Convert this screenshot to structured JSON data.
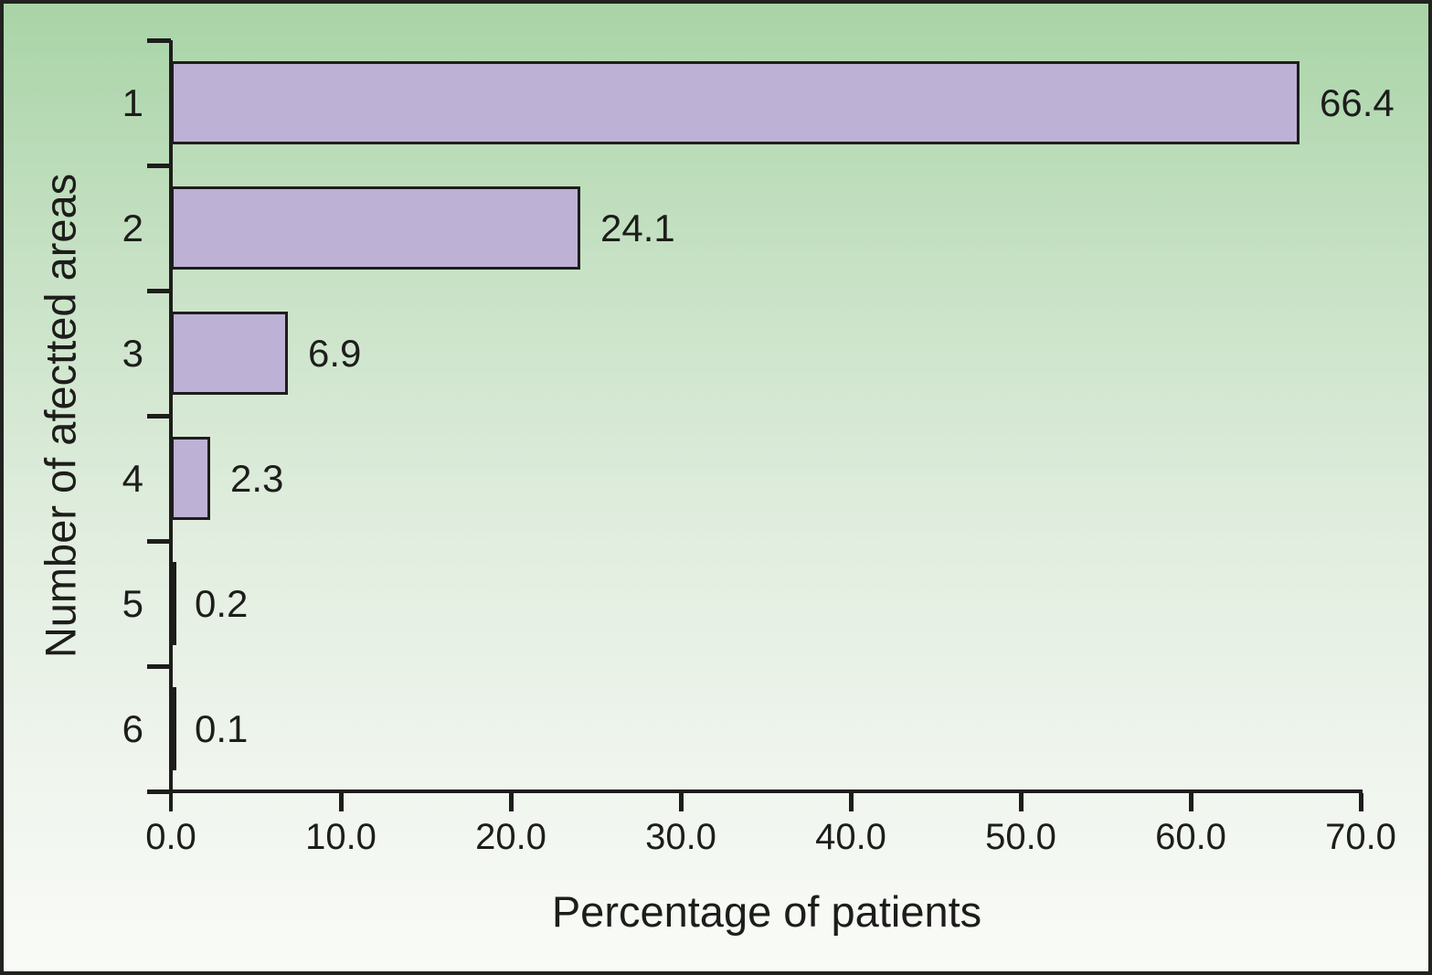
{
  "chart_data": {
    "type": "bar",
    "orientation": "horizontal",
    "categories": [
      "1",
      "2",
      "3",
      "4",
      "5",
      "6"
    ],
    "values": [
      66.4,
      24.1,
      6.9,
      2.3,
      0.2,
      0.1
    ],
    "value_labels": [
      "66.4",
      "24.1",
      "6.9",
      "2.3",
      "0.2",
      "0.1"
    ],
    "xlabel": "Percentage of patients",
    "ylabel": "Number of afectted areas",
    "xlim": [
      0,
      70
    ],
    "x_tick_labels": [
      "0.0",
      "10.0",
      "20.0",
      "30.0",
      "40.0",
      "50.0",
      "60.0",
      "70.0"
    ],
    "grid": false,
    "legend_position": "none",
    "bar_fill_color": "#bdb1d6",
    "bar_border_color": "#1d1d1b",
    "axis_color": "#1d1d1b",
    "background_top_color": "#a9d4a7",
    "background_bottom_color": "#f9fbf7"
  }
}
